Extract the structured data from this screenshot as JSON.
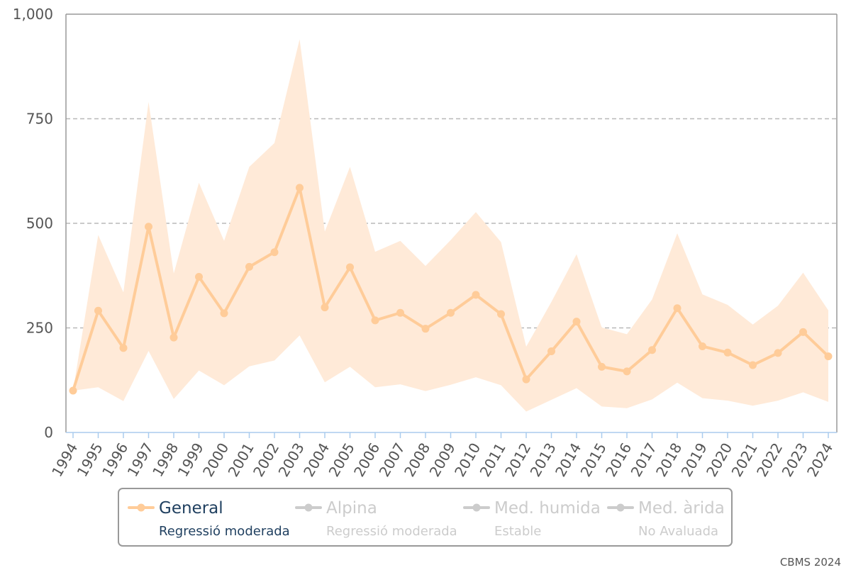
{
  "chart_data": {
    "type": "line",
    "x": [
      "1994",
      "1995",
      "1996",
      "1997",
      "1998",
      "1999",
      "2000",
      "2001",
      "2002",
      "2003",
      "2004",
      "2005",
      "2006",
      "2007",
      "2008",
      "2009",
      "2010",
      "2011",
      "2012",
      "2013",
      "2014",
      "2015",
      "2016",
      "2017",
      "2018",
      "2019",
      "2020",
      "2021",
      "2022",
      "2023",
      "2024"
    ],
    "ylim": [
      0,
      1000
    ],
    "yticks": [
      0,
      250,
      500,
      750,
      1000
    ],
    "ytick_labels": [
      "0",
      "250",
      "500",
      "750",
      "1,000"
    ],
    "grid": true,
    "series": [
      {
        "name": "General",
        "color": "#ffcc99",
        "band_color": "#ffead8",
        "values": [
          100,
          291,
          202,
          492,
          227,
          372,
          285,
          396,
          431,
          585,
          299,
          395,
          268,
          286,
          248,
          286,
          329,
          283,
          127,
          194,
          265,
          157,
          146,
          197,
          297,
          206,
          191,
          161,
          190,
          240,
          182
        ],
        "lower": [
          100,
          108,
          75,
          195,
          80,
          148,
          113,
          158,
          172,
          232,
          120,
          157,
          108,
          115,
          99,
          114,
          132,
          113,
          50,
          78,
          106,
          62,
          58,
          79,
          119,
          82,
          76,
          64,
          76,
          96,
          73
        ],
        "upper": [
          100,
          472,
          335,
          790,
          380,
          597,
          458,
          635,
          692,
          940,
          480,
          635,
          432,
          458,
          398,
          460,
          527,
          455,
          205,
          312,
          426,
          251,
          235,
          318,
          476,
          330,
          305,
          258,
          303,
          382,
          292
        ]
      }
    ],
    "legend": {
      "position": "bottom",
      "items": [
        {
          "name": "General",
          "status": "Regressió moderada",
          "active": true,
          "color": "#ffcc99"
        },
        {
          "name": "Alpina",
          "status": "Regressió moderada",
          "active": false,
          "color": "#cccccc"
        },
        {
          "name": "Med. humida",
          "status": "Estable",
          "active": false,
          "color": "#cccccc"
        },
        {
          "name": "Med. àrida",
          "status": "No Avaluada",
          "active": false,
          "color": "#cccccc"
        }
      ]
    },
    "credit": "CBMS 2024"
  }
}
